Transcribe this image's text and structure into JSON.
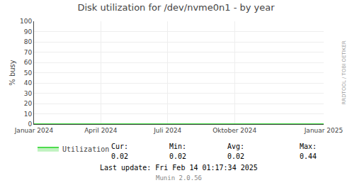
{
  "chart_data": {
    "type": "area",
    "title": "Disk utilization for /dev/nvme0n1 - by year",
    "ylabel": "% busy",
    "x": [
      0,
      13
    ],
    "series": [
      {
        "name": "Utilization",
        "color": "#00cc00",
        "values": [
          0.02,
          0.02
        ]
      }
    ],
    "xlim": [
      0,
      13
    ],
    "xticks": [
      {
        "value": 0,
        "label": "Januar 2024"
      },
      {
        "value": 3,
        "label": "April 2024"
      },
      {
        "value": 6,
        "label": "Juli 2024"
      },
      {
        "value": 9,
        "label": "Oktober 2024"
      },
      {
        "value": 13,
        "label": "Januar 2025"
      }
    ],
    "ylim": [
      0,
      100
    ],
    "yticks": [
      0,
      10,
      20,
      30,
      40,
      50,
      60,
      70,
      80,
      90,
      100
    ],
    "grid": true,
    "legend": "bottom left",
    "stats": [
      {
        "label": "Cur:",
        "value": 0.02
      },
      {
        "label": "Min:",
        "value": 0.02
      },
      {
        "label": "Avg:",
        "value": 0.02
      },
      {
        "label": "Max:",
        "value": 0.44
      }
    ],
    "annotations": [
      "Last update: Fri Feb 14 01:17:34 2025",
      "Munin 2.0.56",
      "RRDTOOL / TOBI OETIKER"
    ]
  }
}
